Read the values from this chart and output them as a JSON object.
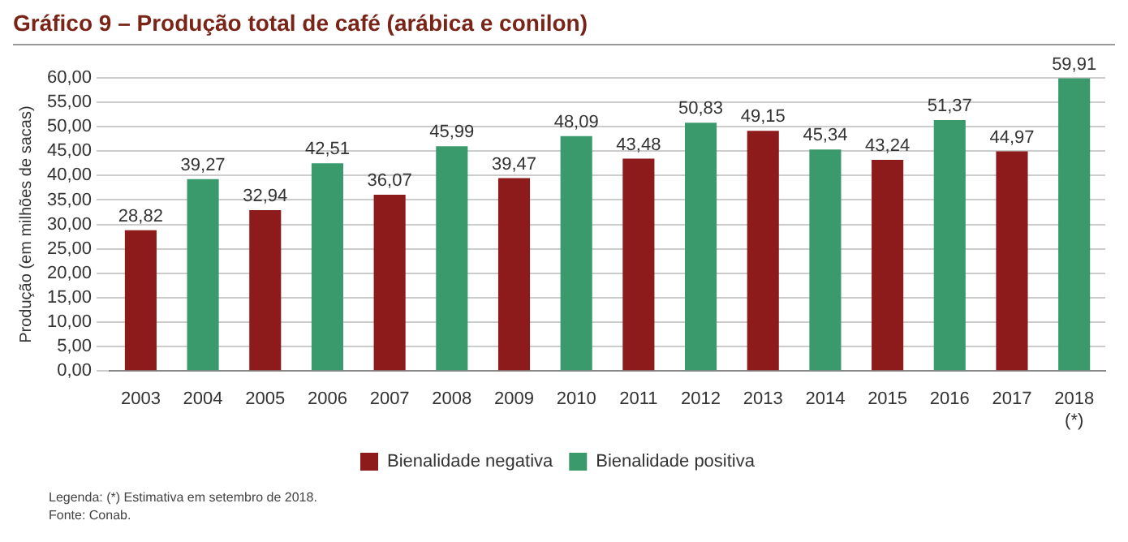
{
  "chart_data": {
    "type": "bar",
    "title": "Gráfico 9 – Produção total de café (arábica e conilon)",
    "ylabel": "Produção (em milhões de sacas)",
    "categories": [
      "2003",
      "2004",
      "2005",
      "2006",
      "2007",
      "2008",
      "2009",
      "2010",
      "2011",
      "2012",
      "2013",
      "2014",
      "2015",
      "2016",
      "2017",
      "2018\n(*)"
    ],
    "series": [
      {
        "name": "Bienalidade negativa",
        "color": "#8e1b1b",
        "values": [
          28.82,
          null,
          32.94,
          null,
          36.07,
          null,
          39.47,
          null,
          43.48,
          null,
          49.15,
          null,
          43.24,
          null,
          44.97,
          null
        ],
        "value_labels": [
          "28,82",
          null,
          "32,94",
          null,
          "36,07",
          null,
          "39,47",
          null,
          "43,48",
          null,
          "49,15",
          null,
          "43,24",
          null,
          "44,97",
          null
        ]
      },
      {
        "name": "Bienalidade positiva",
        "color": "#3b9a6b",
        "values": [
          null,
          39.27,
          null,
          42.51,
          null,
          45.99,
          null,
          48.09,
          null,
          50.83,
          null,
          45.34,
          null,
          51.37,
          null,
          59.91
        ],
        "value_labels": [
          null,
          "39,27",
          null,
          "42,51",
          null,
          "45,99",
          null,
          "48,09",
          null,
          "50,83",
          null,
          "45,34",
          null,
          "51,37",
          null,
          "59,91"
        ]
      }
    ],
    "ylim": [
      0,
      60
    ],
    "yticks": [
      {
        "value": 0,
        "label": "0,00"
      },
      {
        "value": 5,
        "label": "5,00"
      },
      {
        "value": 10,
        "label": "10,00"
      },
      {
        "value": 15,
        "label": "15,00"
      },
      {
        "value": 20,
        "label": "20,00"
      },
      {
        "value": 25,
        "label": "25,00"
      },
      {
        "value": 30,
        "label": "30,00"
      },
      {
        "value": 35,
        "label": "35,00"
      },
      {
        "value": 40,
        "label": "40,00"
      },
      {
        "value": 45,
        "label": "45,00"
      },
      {
        "value": 50,
        "label": "50,00"
      },
      {
        "value": 55,
        "label": "55,00"
      },
      {
        "value": 60,
        "label": "60,00"
      }
    ],
    "grid": "y",
    "legend": "bottom",
    "annotations": [
      "Legenda: (*) Estimativa em setembro de 2018.",
      "Fonte: Conab."
    ]
  }
}
